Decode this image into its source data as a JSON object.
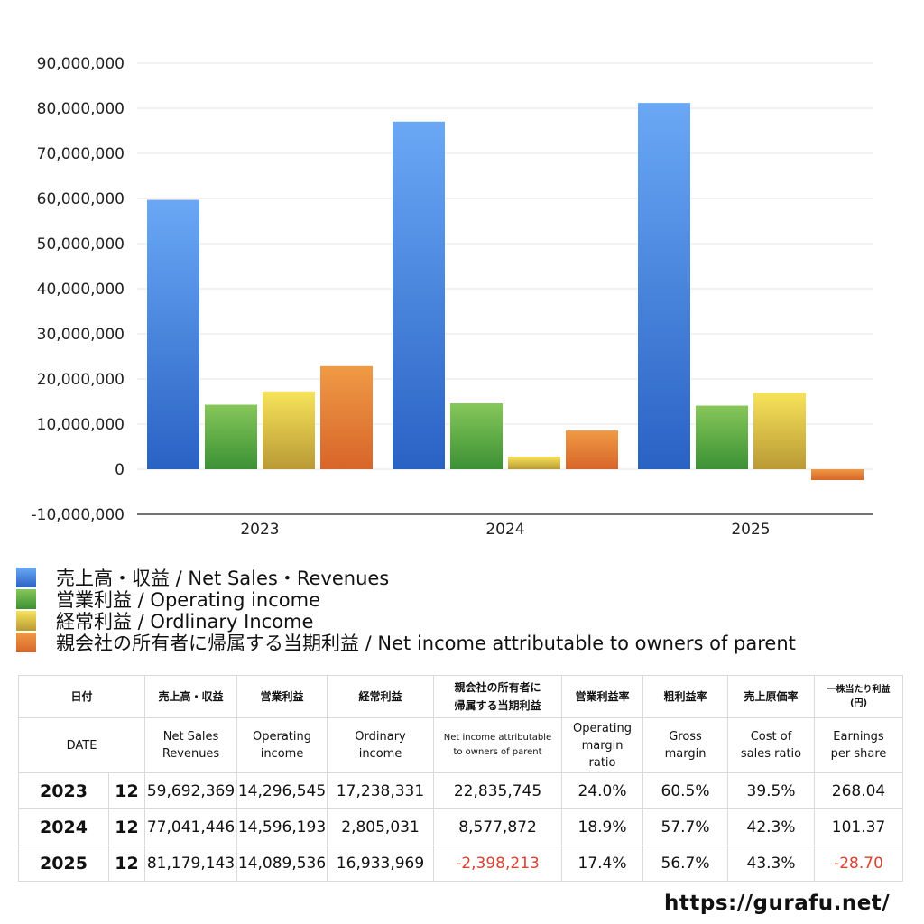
{
  "chart_data": {
    "type": "bar",
    "categories": [
      "2023",
      "2024",
      "2025"
    ],
    "series": [
      {
        "name": "売上高・収益 / Net Sales・Revenues",
        "values": [
          59692369,
          77041446,
          81179143
        ]
      },
      {
        "name": "営業利益 / Operating income",
        "values": [
          14296545,
          14596193,
          14089536
        ]
      },
      {
        "name": "経常利益 / Ordlinary Income",
        "values": [
          17238331,
          2805031,
          16933969
        ]
      },
      {
        "name": "親会社の所有者に帰属する当期利益 / Net income attributable to owners of parent",
        "values": [
          22835745,
          8577872,
          -2398213
        ]
      }
    ],
    "ylim": [
      -10000000,
      90000000
    ],
    "yticks": [
      "90,000,000",
      "80,000,000",
      "70,000,000",
      "60,000,000",
      "50,000,000",
      "40,000,000",
      "30,000,000",
      "20,000,000",
      "10,000,000",
      "0",
      "-10,000,000"
    ],
    "grid": true,
    "legend_position": "bottom",
    "title": "",
    "xlabel": "",
    "ylabel": ""
  },
  "colors": {
    "series": [
      [
        "#6aa8f5",
        "#2a62c4"
      ],
      [
        "#86c75a",
        "#3b9134"
      ],
      [
        "#f7e35a",
        "#b99a35"
      ],
      [
        "#ef9a45",
        "#d8652a"
      ]
    ],
    "negative": "#d9432f",
    "grid": "#e6e6e6"
  },
  "legend": {
    "items": [
      "売上高・収益 / Net Sales・Revenues",
      "営業利益 / Operating income",
      "経常利益 / Ordlinary Income",
      "親会社の所有者に帰属する当期利益 / Net income attributable to owners of parent"
    ]
  },
  "table": {
    "header_jp": {
      "date": "日付",
      "sales": "売上高・収益",
      "op": "営業利益",
      "ord": "経常利益",
      "net_1": "親会社の所有者に",
      "net_2": "帰属する当期利益",
      "opm": "営業利益率",
      "gm": "粗利益率",
      "cr": "売上原価率",
      "eps_1": "一株当たり利益",
      "eps_2": "(円)"
    },
    "header_en": {
      "date": "DATE",
      "sales_1": "Net Sales",
      "sales_2": "Revenues",
      "op_1": "Operating",
      "op_2": "income",
      "ord_1": "Ordinary",
      "ord_2": "income",
      "net_1": "Net income attributable",
      "net_2": "to owners of parent",
      "opm_1": "Operating",
      "opm_2": "margin",
      "opm_3": "ratio",
      "gm_1": "Gross",
      "gm_2": "margin",
      "cr_1": "Cost of",
      "cr_2": "sales ratio",
      "eps_1": "Earnings",
      "eps_2": "per share"
    },
    "rows": [
      {
        "year": "2023",
        "month": "12",
        "sales": "59,692,369",
        "op": "14,296,545",
        "ord": "17,238,331",
        "net": "22,835,745",
        "opm": "24.0%",
        "gm": "60.5%",
        "cr": "39.5%",
        "eps": "268.04"
      },
      {
        "year": "2024",
        "month": "12",
        "sales": "77,041,446",
        "op": "14,596,193",
        "ord": "2,805,031",
        "net": "8,577,872",
        "opm": "18.9%",
        "gm": "57.7%",
        "cr": "42.3%",
        "eps": "101.37"
      },
      {
        "year": "2025",
        "month": "12",
        "sales": "81,179,143",
        "op": "14,089,536",
        "ord": "16,933,969",
        "net": "-2,398,213",
        "opm": "17.4%",
        "gm": "56.7%",
        "cr": "43.3%",
        "eps": "-28.70"
      }
    ]
  },
  "footer": {
    "site": "https://gurafu.net/"
  }
}
